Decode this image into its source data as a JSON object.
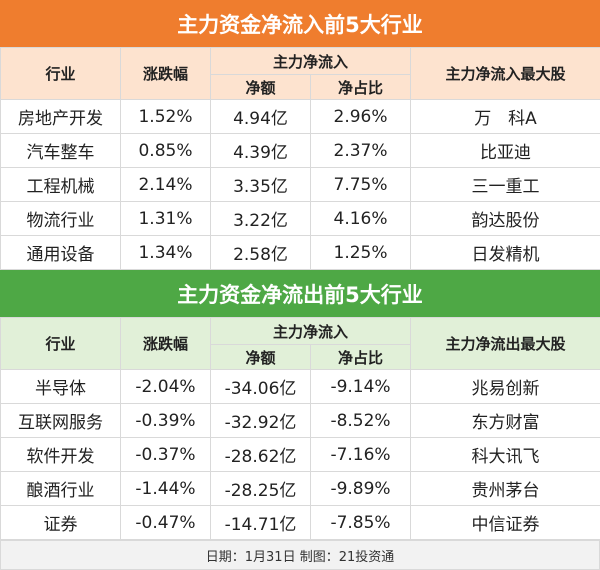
{
  "inflow": {
    "title": "主力资金净流入前5大行业",
    "headers": {
      "industry": "行业",
      "change": "涨跌幅",
      "main_flow": "主力净流入",
      "net_amount": "净额",
      "net_ratio": "净占比",
      "top_stock": "主力净流入最大股"
    },
    "rows": [
      {
        "industry": "房地产开发",
        "change": "1.52%",
        "net": "4.94亿",
        "ratio": "2.96%",
        "stock": "万　科A"
      },
      {
        "industry": "汽车整车",
        "change": "0.85%",
        "net": "4.39亿",
        "ratio": "2.37%",
        "stock": "比亚迪"
      },
      {
        "industry": "工程机械",
        "change": "2.14%",
        "net": "3.35亿",
        "ratio": "7.75%",
        "stock": "三一重工"
      },
      {
        "industry": "物流行业",
        "change": "1.31%",
        "net": "3.22亿",
        "ratio": "4.16%",
        "stock": "韵达股份"
      },
      {
        "industry": "通用设备",
        "change": "1.34%",
        "net": "2.58亿",
        "ratio": "1.25%",
        "stock": "日发精机"
      }
    ]
  },
  "outflow": {
    "title": "主力资金净流出前5大行业",
    "headers": {
      "industry": "行业",
      "change": "涨跌幅",
      "main_flow": "主力净流入",
      "net_amount": "净额",
      "net_ratio": "净占比",
      "top_stock": "主力净流出最大股"
    },
    "rows": [
      {
        "industry": "半导体",
        "change": "-2.04%",
        "net": "-34.06亿",
        "ratio": "-9.14%",
        "stock": "兆易创新"
      },
      {
        "industry": "互联网服务",
        "change": "-0.39%",
        "net": "-32.92亿",
        "ratio": "-8.52%",
        "stock": "东方财富"
      },
      {
        "industry": "软件开发",
        "change": "-0.37%",
        "net": "-28.62亿",
        "ratio": "-7.16%",
        "stock": "科大讯飞"
      },
      {
        "industry": "酿酒行业",
        "change": "-1.44%",
        "net": "-28.25亿",
        "ratio": "-9.89%",
        "stock": "贵州茅台"
      },
      {
        "industry": "证券",
        "change": "-0.47%",
        "net": "-14.71亿",
        "ratio": "-7.85%",
        "stock": "中信证券"
      }
    ]
  },
  "footer": "日期：1月31日 制图：21投资通",
  "colors": {
    "inflow_title_bg": "#ef7d2e",
    "inflow_header_bg": "#fde3cf",
    "outflow_title_bg": "#4ea845",
    "outflow_header_bg": "#e1f0d8"
  }
}
